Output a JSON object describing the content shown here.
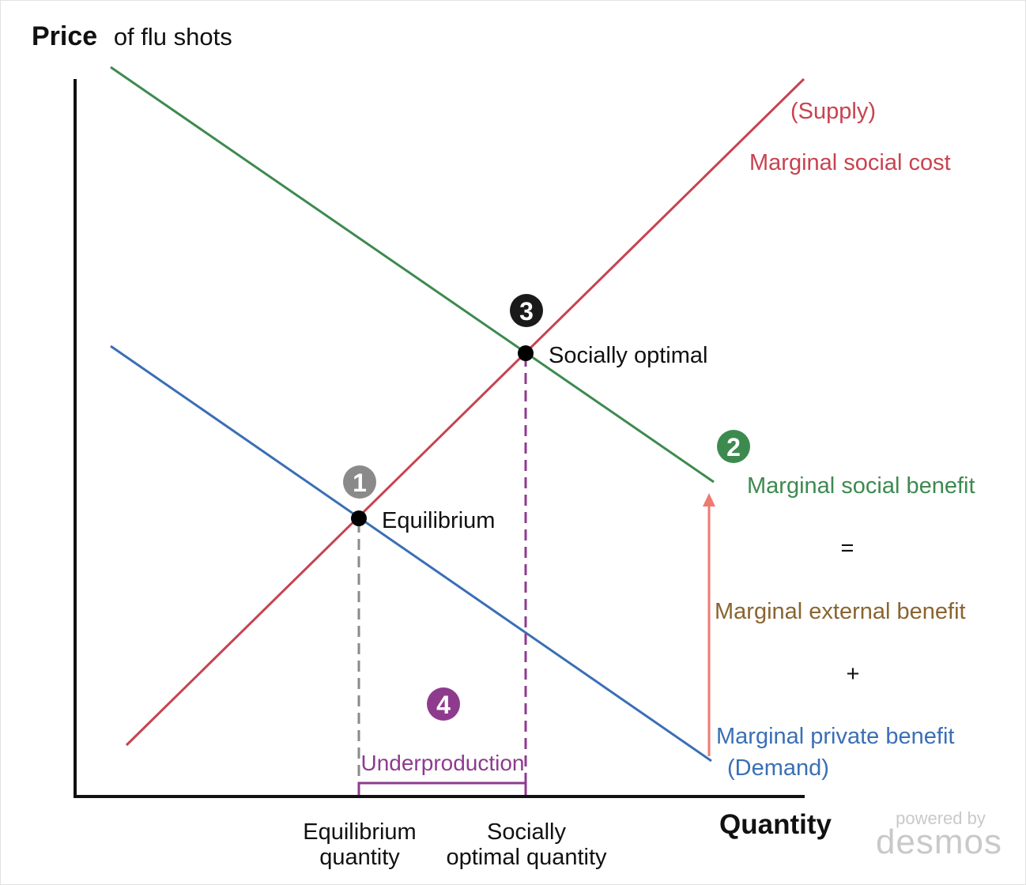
{
  "title": {
    "bold": "Price",
    "rest": "of flu shots"
  },
  "x_axis_title": "Quantity",
  "curves": {
    "supply_paren": "(Supply)",
    "msc": "Marginal social cost",
    "msb": "Marginal social benefit",
    "mpb": "Marginal private benefit",
    "demand_paren": "(Demand)"
  },
  "equation": {
    "equals": "=",
    "meb": "Marginal external benefit",
    "plus": "+"
  },
  "points": {
    "equilibrium": "Equilibrium",
    "social_optimum": "Socially optimal"
  },
  "markers": {
    "m1": "1",
    "m2": "2",
    "m3": "3",
    "m4": "4"
  },
  "underproduction": "Underproduction",
  "ticks": {
    "eq_q_line1": "Equilibrium",
    "eq_q_line2": "quantity",
    "so_q_line1": "Socially",
    "so_q_line2": "optimal quantity"
  },
  "branding": {
    "powered_by": "powered by",
    "name": "desmos"
  },
  "colors": {
    "supply": "#c74350",
    "msb": "#3d8a4f",
    "mpb": "#3a6fb5",
    "meb_text": "#8a6430",
    "arrow": "#ef7a72",
    "purple": "#8e3b8e",
    "gray_marker": "#8a8a8a",
    "dark_marker": "#1a1a1a"
  }
}
